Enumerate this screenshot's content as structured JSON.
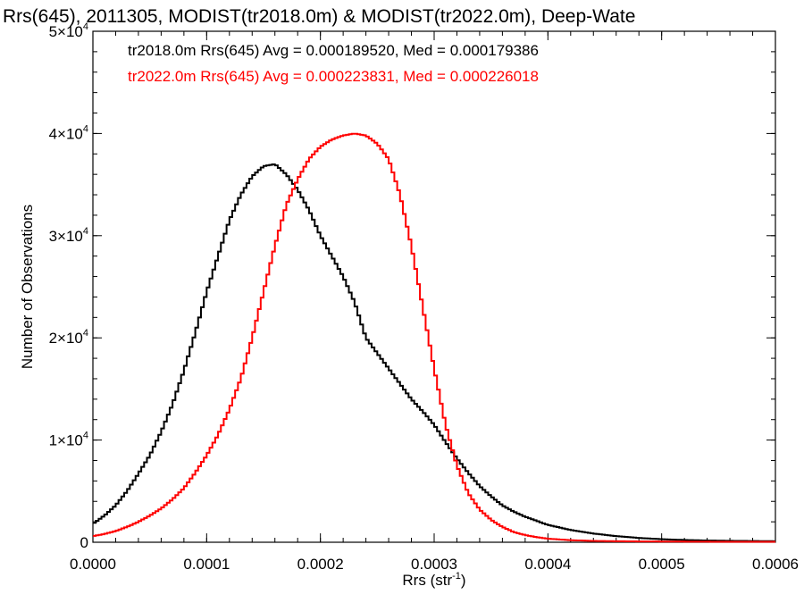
{
  "chart_data": {
    "type": "line",
    "title": "Rrs(645), 2011305, MODIST(tr2018.0m) & MODIST(tr2022.0m), Deep-Wate",
    "xlabel": "Rrs (str",
    "xlabel_sup": "-1",
    "xlabel_close": ")",
    "ylabel": "Number of Observations",
    "xlim": [
      0,
      0.0006
    ],
    "ylim": [
      0,
      50000
    ],
    "x_ticks": [
      0,
      0.0001,
      0.0002,
      0.0003,
      0.0004,
      0.0005,
      0.0006
    ],
    "x_tick_labels": [
      "0.0000",
      "0.0001",
      "0.0002",
      "0.0003",
      "0.0004",
      "0.0005",
      "0.0006"
    ],
    "y_ticks": [
      0,
      10000,
      20000,
      30000,
      40000,
      50000
    ],
    "y_tick_labels": [
      {
        "base": "0",
        "exp": ""
      },
      {
        "base": "1×10",
        "exp": "4"
      },
      {
        "base": "2×10",
        "exp": "4"
      },
      {
        "base": "3×10",
        "exp": "4"
      },
      {
        "base": "4×10",
        "exp": "4"
      },
      {
        "base": "5×10",
        "exp": "4"
      }
    ],
    "legend_placement": "top-left",
    "grid": false,
    "series": [
      {
        "name": "tr2018.0m",
        "color": "#000000",
        "annotation": "tr2018.0m Rrs(645) Avg = 0.000189520, Med = 0.000179386",
        "x": [
          0,
          1e-05,
          2e-05,
          3e-05,
          4e-05,
          5e-05,
          6e-05,
          7e-05,
          8e-05,
          9e-05,
          0.0001,
          0.00011,
          0.00012,
          0.00013,
          0.00014,
          0.00015,
          0.00016,
          0.00017,
          0.00018,
          0.00019,
          0.0002,
          0.00021,
          0.00022,
          0.00023,
          0.00024,
          0.00025,
          0.00026,
          0.00027,
          0.00028,
          0.00029,
          0.0003,
          0.00031,
          0.00032,
          0.00033,
          0.00034,
          0.00035,
          0.00036,
          0.00037,
          0.00038,
          0.00039,
          0.0004,
          0.00042,
          0.00044,
          0.00046,
          0.00048,
          0.0005,
          0.00052,
          0.00054,
          0.00056,
          0.00058,
          0.0006
        ],
        "y": [
          1800,
          2600,
          3600,
          5000,
          6700,
          8500,
          10800,
          13500,
          16800,
          20500,
          24500,
          28000,
          31500,
          34000,
          35800,
          36800,
          37000,
          36000,
          34500,
          32500,
          30000,
          28000,
          26000,
          23500,
          20000,
          18500,
          17000,
          15500,
          14000,
          12800,
          11500,
          9800,
          8200,
          6800,
          5500,
          4500,
          3600,
          3000,
          2500,
          2100,
          1700,
          1200,
          850,
          600,
          420,
          300,
          220,
          170,
          140,
          120,
          100
        ]
      },
      {
        "name": "tr2022.0m",
        "color": "#ff0000",
        "annotation": "tr2022.0m Rrs(645) Avg = 0.000223831, Med = 0.000226018",
        "x": [
          0,
          1e-05,
          2e-05,
          3e-05,
          4e-05,
          5e-05,
          6e-05,
          7e-05,
          8e-05,
          9e-05,
          0.0001,
          0.00011,
          0.00012,
          0.00013,
          0.00014,
          0.00015,
          0.00016,
          0.00017,
          0.00018,
          0.00019,
          0.0002,
          0.00021,
          0.00022,
          0.00023,
          0.00024,
          0.00025,
          0.00026,
          0.00027,
          0.00028,
          0.00029,
          0.0003,
          0.00031,
          0.00032,
          0.00033,
          0.00034,
          0.00035,
          0.00036,
          0.00037,
          0.00038,
          0.00039,
          0.0004,
          0.00042,
          0.00044,
          0.00046,
          0.00048,
          0.0005,
          0.00052,
          0.00054,
          0.00056,
          0.00058,
          0.0006
        ],
        "y": [
          600,
          800,
          1100,
          1500,
          2000,
          2600,
          3300,
          4200,
          5300,
          6800,
          8500,
          10500,
          13000,
          16000,
          20000,
          24500,
          29000,
          33000,
          35500,
          37500,
          38700,
          39400,
          39800,
          40000,
          39800,
          39000,
          37500,
          34000,
          29000,
          23000,
          17000,
          11500,
          7500,
          4800,
          3200,
          2200,
          1500,
          1000,
          700,
          500,
          350,
          200,
          130,
          100,
          80,
          70,
          60,
          50,
          45,
          40,
          40
        ]
      }
    ]
  }
}
